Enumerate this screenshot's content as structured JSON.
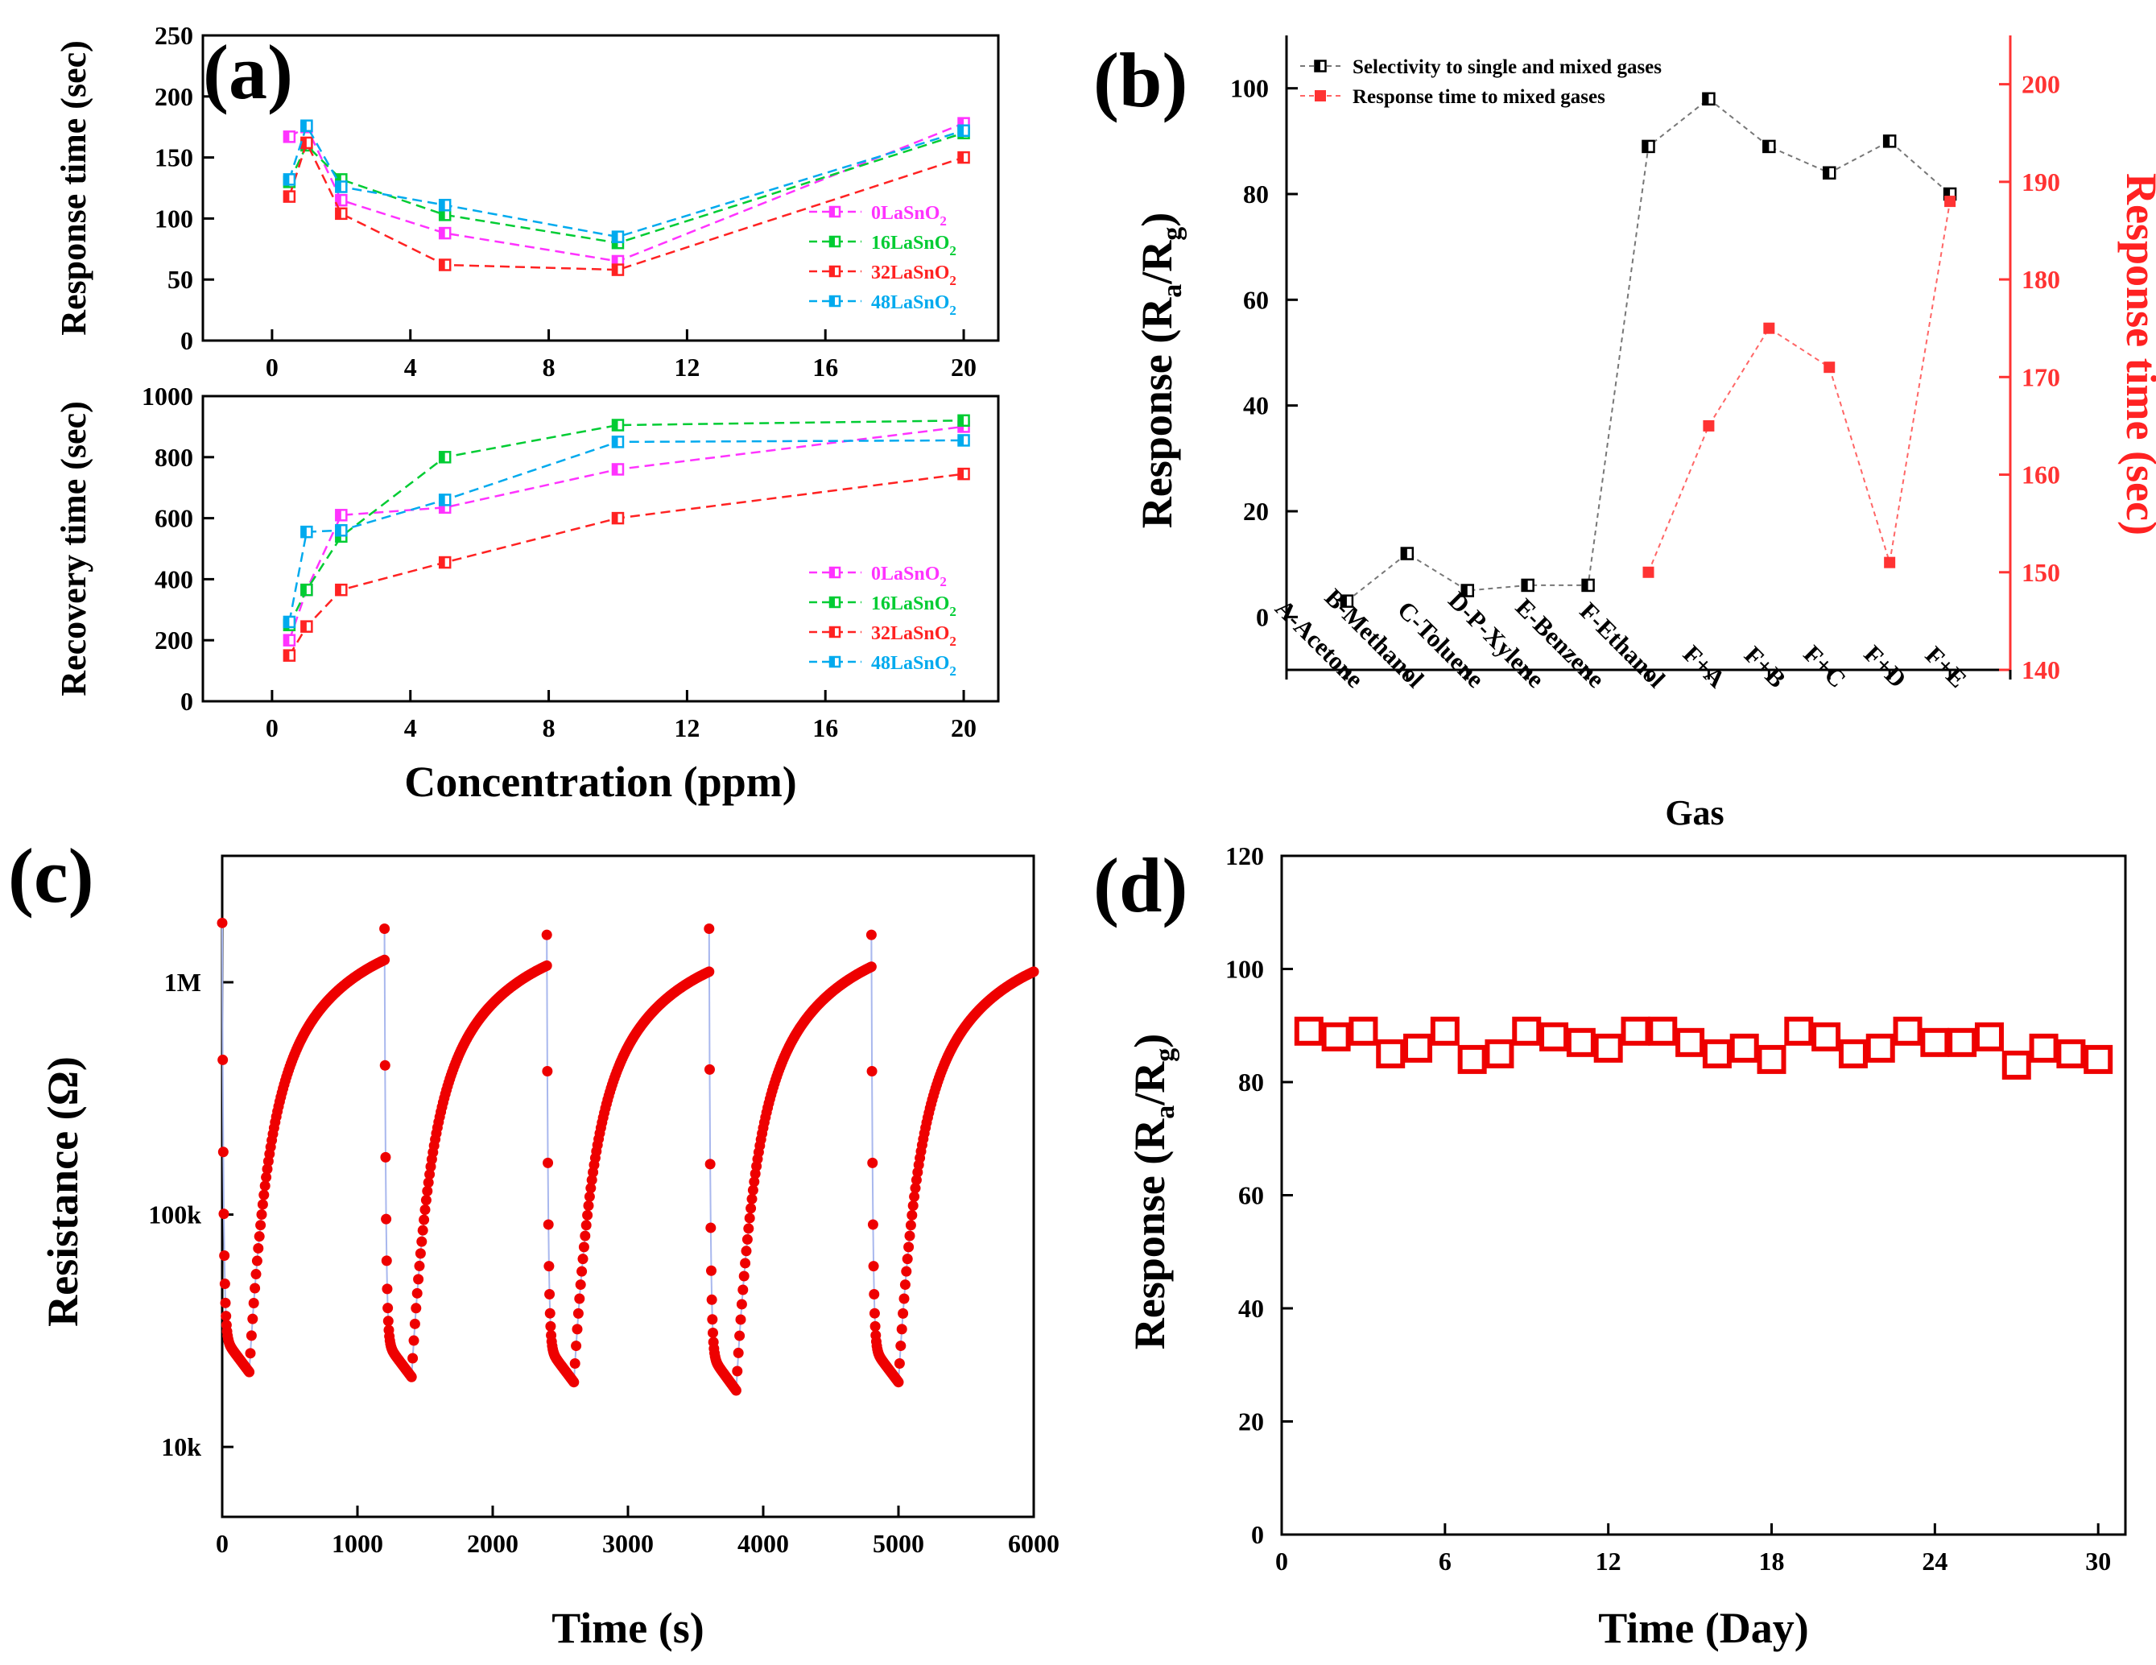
{
  "chart_data": [
    {
      "id": "a-top",
      "panel_label": "(a)",
      "type": "line",
      "ylabel": "Response time (sec)",
      "xlabel": "",
      "xlim": [
        -2,
        21
      ],
      "ylim": [
        0,
        250
      ],
      "xticks": [
        0,
        4,
        8,
        12,
        16,
        20
      ],
      "yticks": [
        0,
        50,
        100,
        150,
        200,
        250
      ],
      "legend_position": "lower-right",
      "x": [
        0.5,
        1,
        2,
        5,
        10,
        20
      ],
      "series": [
        {
          "name": "0LaSnO2",
          "sub_base": "0LaSnO",
          "sub": "2",
          "color": "#ff33ff",
          "values": [
            167,
            175,
            115,
            88,
            65,
            178
          ]
        },
        {
          "name": "16LaSnO2",
          "sub_base": "16LaSnO",
          "sub": "2",
          "color": "#00cc33",
          "values": [
            130,
            160,
            132,
            103,
            80,
            170
          ]
        },
        {
          "name": "32LaSnO2",
          "sub_base": "32LaSnO",
          "sub": "2",
          "color": "#ff2222",
          "values": [
            118,
            162,
            104,
            62,
            58,
            150
          ]
        },
        {
          "name": "48LaSnO2",
          "sub_base": "48LaSnO",
          "sub": "2",
          "color": "#00aaee",
          "values": [
            132,
            176,
            126,
            111,
            85,
            172
          ]
        }
      ]
    },
    {
      "id": "a-bottom",
      "type": "line",
      "ylabel": "Recovery time (sec)",
      "xlabel": "Concentration (ppm)",
      "xlim": [
        -2,
        21
      ],
      "ylim": [
        0,
        1000
      ],
      "xticks": [
        0,
        4,
        8,
        12,
        16,
        20
      ],
      "yticks": [
        0,
        200,
        400,
        600,
        800,
        1000
      ],
      "legend_position": "lower-right",
      "x": [
        0.5,
        1,
        2,
        5,
        10,
        20
      ],
      "series": [
        {
          "name": "0LaSnO2",
          "sub_base": "0LaSnO",
          "sub": "2",
          "color": "#ff33ff",
          "values": [
            200,
            365,
            610,
            635,
            760,
            900
          ]
        },
        {
          "name": "16LaSnO2",
          "sub_base": "16LaSnO",
          "sub": "2",
          "color": "#00cc33",
          "values": [
            250,
            365,
            540,
            800,
            905,
            920
          ]
        },
        {
          "name": "32LaSnO2",
          "sub_base": "32LaSnO",
          "sub": "2",
          "color": "#ff2222",
          "values": [
            150,
            245,
            365,
            455,
            600,
            745
          ]
        },
        {
          "name": "48LaSnO2",
          "sub_base": "48LaSnO",
          "sub": "2",
          "color": "#00aaee",
          "values": [
            260,
            555,
            560,
            660,
            850,
            855
          ]
        }
      ]
    },
    {
      "id": "b",
      "panel_label": "(b)",
      "type": "line",
      "xlabel": "Gas",
      "ylabel": "Response (Ra/Rg)",
      "ylabel_main": "Response (R",
      "ylabel_sub1": "a",
      "ylabel_mid": "/R",
      "ylabel_sub2": "g",
      "ylabel_end": ")",
      "y2label": "Response time (sec)",
      "categories": [
        "A-Acetone",
        "B-Methanol",
        "C-Toluene",
        "D-P-Xylene",
        "E-Benzene",
        "F-Ethanol",
        "F+A",
        "F+B",
        "F+C",
        "F+D",
        "F+E"
      ],
      "ylim": [
        -10,
        110
      ],
      "yticks": [
        0,
        20,
        40,
        60,
        80,
        100
      ],
      "y2lim": [
        140,
        205
      ],
      "y2ticks": [
        140,
        150,
        160,
        170,
        180,
        190,
        200
      ],
      "legend_position": "top-left",
      "series": [
        {
          "name": "Selectivity to single and mixed gases",
          "axis": "left",
          "color": "#000000",
          "values": [
            3,
            12,
            5,
            6,
            6,
            89,
            98,
            89,
            84,
            90,
            80
          ]
        },
        {
          "name": "Response time to mixed gases",
          "axis": "right",
          "color": "#ff3333",
          "values": [
            null,
            null,
            null,
            null,
            null,
            150,
            165,
            175,
            171,
            151,
            188
          ]
        }
      ]
    },
    {
      "id": "c",
      "panel_label": "(c)",
      "type": "scatter",
      "xlabel": "Time (s)",
      "ylabel": "Resistance (Ω)",
      "xlim": [
        0,
        6000
      ],
      "xticks": [
        0,
        1000,
        2000,
        3000,
        4000,
        5000,
        6000
      ],
      "yscale": "log",
      "ylim": [
        5000,
        3500000
      ],
      "ytick_values": [
        10000,
        100000,
        1000000
      ],
      "ytick_labels": [
        "10k",
        "100k",
        "1M"
      ],
      "color": "#ee0000",
      "line_color": "#a9b8ee",
      "cycles": [
        {
          "fall_start": 0,
          "min_time": 200,
          "rise_end": 1200,
          "high": 1800000,
          "low": 21000
        },
        {
          "fall_start": 1200,
          "min_time": 1400,
          "rise_end": 2400,
          "high": 1700000,
          "low": 20000
        },
        {
          "fall_start": 2400,
          "min_time": 2600,
          "rise_end": 3600,
          "high": 1600000,
          "low": 19000
        },
        {
          "fall_start": 3600,
          "min_time": 3800,
          "rise_end": 4800,
          "high": 1700000,
          "low": 17500
        },
        {
          "fall_start": 4800,
          "min_time": 5000,
          "rise_end": 6000,
          "high": 1600000,
          "low": 19000
        }
      ]
    },
    {
      "id": "d",
      "panel_label": "(d)",
      "type": "scatter",
      "xlabel": "Time (Day)",
      "ylabel": "Response (Ra/Rg)",
      "ylabel_main": "Response (R",
      "ylabel_sub1": "a",
      "ylabel_mid": "/R",
      "ylabel_sub2": "g",
      "ylabel_end": ")",
      "xlim": [
        0,
        31
      ],
      "ylim": [
        0,
        120
      ],
      "xticks": [
        0,
        6,
        12,
        18,
        24,
        30
      ],
      "yticks": [
        0,
        20,
        40,
        60,
        80,
        100,
        120
      ],
      "color": "#ee0000",
      "x": [
        1,
        2,
        3,
        4,
        5,
        6,
        7,
        8,
        9,
        10,
        11,
        12,
        13,
        14,
        15,
        16,
        17,
        18,
        19,
        20,
        21,
        22,
        23,
        24,
        25,
        26,
        27,
        28,
        29,
        30
      ],
      "values": [
        89,
        88,
        89,
        85,
        86,
        89,
        84,
        85,
        89,
        88,
        87,
        86,
        89,
        89,
        87,
        85,
        86,
        84,
        89,
        88,
        85,
        86,
        89,
        87,
        87,
        88,
        83,
        86,
        85,
        84
      ]
    }
  ]
}
